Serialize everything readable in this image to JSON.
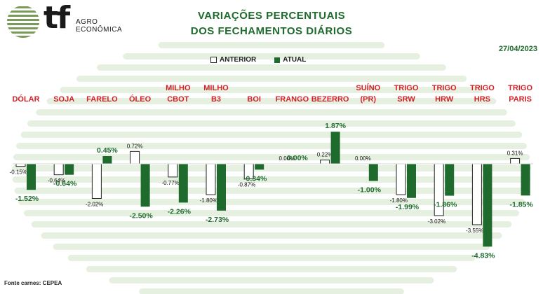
{
  "logo": {
    "brand": "tf",
    "sub_line1": "AGRO",
    "sub_line2": "ECONÔMICA"
  },
  "title_line1": "VARIAÇÕES PERCENTUAIS",
  "title_line2": "DOS FECHAMENTOS DIÁRIOS",
  "date": "27/04/2023",
  "legend": {
    "previous": "ANTERIOR",
    "current": "ATUAL"
  },
  "source": "Fonte carnes: CEPEA",
  "colors": {
    "title": "#1e6b2d",
    "current_bar": "#1e6b2d",
    "category_label": "#d42027",
    "previous_bar": "#ffffff"
  },
  "chart_data": {
    "type": "bar",
    "categories": [
      [
        "DÓLAR"
      ],
      [
        "SOJA"
      ],
      [
        "FARELO"
      ],
      [
        "ÓLEO"
      ],
      [
        "MILHO",
        "CBOT"
      ],
      [
        "MILHO",
        "B3"
      ],
      [
        "BOI"
      ],
      [
        "FRANGO"
      ],
      [
        "BEZERRO"
      ],
      [
        "SUÍNO",
        "(PR)"
      ],
      [
        "TRIGO",
        "SRW"
      ],
      [
        "TRIGO",
        "HRW"
      ],
      [
        "TRIGO",
        "HRS"
      ],
      [
        "TRIGO",
        "PARIS"
      ]
    ],
    "series": [
      {
        "name": "ANTERIOR",
        "values": [
          -0.15,
          -0.64,
          -2.02,
          0.72,
          -0.77,
          -1.8,
          -0.87,
          0.0,
          0.22,
          0.0,
          -1.8,
          -3.02,
          -3.55,
          0.31
        ],
        "labels": [
          "-0.15%",
          "-0.64%",
          "-2.02%",
          "0.72%",
          "-0.77%",
          "-1.80%",
          "-0.87%",
          "0.00%",
          "0.22%",
          "0.00%",
          "-1.80%",
          "-3.02%",
          "-3.55%",
          "0.31%"
        ]
      },
      {
        "name": "ATUAL",
        "values": [
          -1.52,
          -0.64,
          0.45,
          -2.5,
          -2.26,
          -2.73,
          -0.34,
          0.0,
          1.87,
          -1.0,
          -1.99,
          -1.86,
          -4.83,
          -1.85
        ],
        "labels": [
          "-1.52%",
          "-0.64%",
          "0.45%",
          "-2.50%",
          "-2.26%",
          "-2.73%",
          "-0.34%",
          "0.00%",
          "1.87%",
          "-1.00%",
          "-1.99%",
          "-1.86%",
          "-4.83%",
          "-1.85%"
        ]
      }
    ],
    "grid": false,
    "legend_position": "top-center"
  }
}
